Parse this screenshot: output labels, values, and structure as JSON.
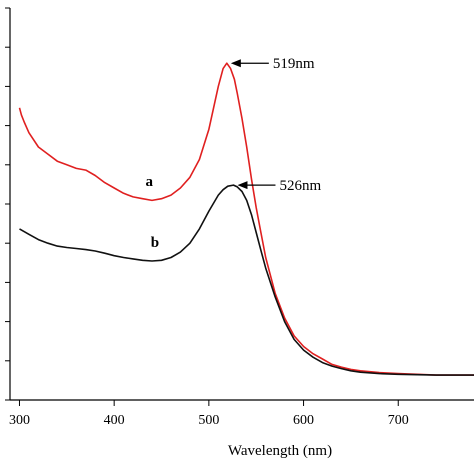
{
  "chart_data": {
    "type": "line",
    "title": "",
    "xlabel": "Wavelength (nm)",
    "ylabel": "",
    "xlim": [
      290,
      780
    ],
    "ylim": [
      0,
      1.1
    ],
    "x_ticks": [
      300,
      400,
      500,
      600,
      700
    ],
    "y_tick_count": 11,
    "y_tick_labels_visible": false,
    "grid": false,
    "legend": "none",
    "series": [
      {
        "name": "a",
        "color": "#e02020",
        "x": [
          300,
          302,
          305,
          310,
          320,
          330,
          340,
          350,
          360,
          370,
          380,
          390,
          400,
          410,
          420,
          430,
          440,
          450,
          460,
          470,
          480,
          490,
          500,
          505,
          510,
          515,
          519,
          523,
          527,
          530,
          535,
          540,
          545,
          550,
          555,
          560,
          570,
          580,
          590,
          600,
          610,
          620,
          630,
          640,
          650,
          660,
          680,
          700,
          720,
          740,
          760,
          780
        ],
        "y": [
          0.82,
          0.8,
          0.78,
          0.75,
          0.71,
          0.69,
          0.67,
          0.66,
          0.65,
          0.645,
          0.63,
          0.61,
          0.595,
          0.58,
          0.57,
          0.565,
          0.56,
          0.565,
          0.575,
          0.595,
          0.625,
          0.675,
          0.76,
          0.82,
          0.88,
          0.93,
          0.945,
          0.93,
          0.9,
          0.86,
          0.79,
          0.71,
          0.62,
          0.54,
          0.47,
          0.4,
          0.3,
          0.23,
          0.18,
          0.15,
          0.13,
          0.115,
          0.1,
          0.092,
          0.086,
          0.082,
          0.077,
          0.074,
          0.072,
          0.07,
          0.07,
          0.07
        ]
      },
      {
        "name": "b",
        "color": "#111111",
        "x": [
          300,
          310,
          320,
          330,
          340,
          350,
          360,
          370,
          380,
          390,
          400,
          410,
          420,
          430,
          440,
          450,
          460,
          470,
          480,
          490,
          500,
          510,
          515,
          520,
          526,
          530,
          535,
          540,
          545,
          550,
          555,
          560,
          570,
          580,
          590,
          600,
          610,
          620,
          630,
          640,
          650,
          660,
          680,
          700,
          720,
          740,
          760,
          780
        ],
        "y": [
          0.48,
          0.465,
          0.45,
          0.44,
          0.432,
          0.428,
          0.425,
          0.422,
          0.418,
          0.412,
          0.405,
          0.4,
          0.396,
          0.392,
          0.39,
          0.392,
          0.4,
          0.415,
          0.44,
          0.48,
          0.53,
          0.575,
          0.59,
          0.6,
          0.603,
          0.598,
          0.585,
          0.56,
          0.52,
          0.47,
          0.42,
          0.37,
          0.29,
          0.22,
          0.17,
          0.14,
          0.12,
          0.105,
          0.095,
          0.088,
          0.082,
          0.078,
          0.074,
          0.072,
          0.071,
          0.07,
          0.07,
          0.07
        ]
      }
    ],
    "annotations": [
      {
        "text": "519nm",
        "x": 519,
        "y": 0.945
      },
      {
        "text": "526nm",
        "x": 526,
        "y": 0.603
      }
    ],
    "curve_labels": [
      {
        "text": "a",
        "x": 437,
        "y": 0.6
      },
      {
        "text": "b",
        "x": 443,
        "y": 0.43
      }
    ]
  }
}
